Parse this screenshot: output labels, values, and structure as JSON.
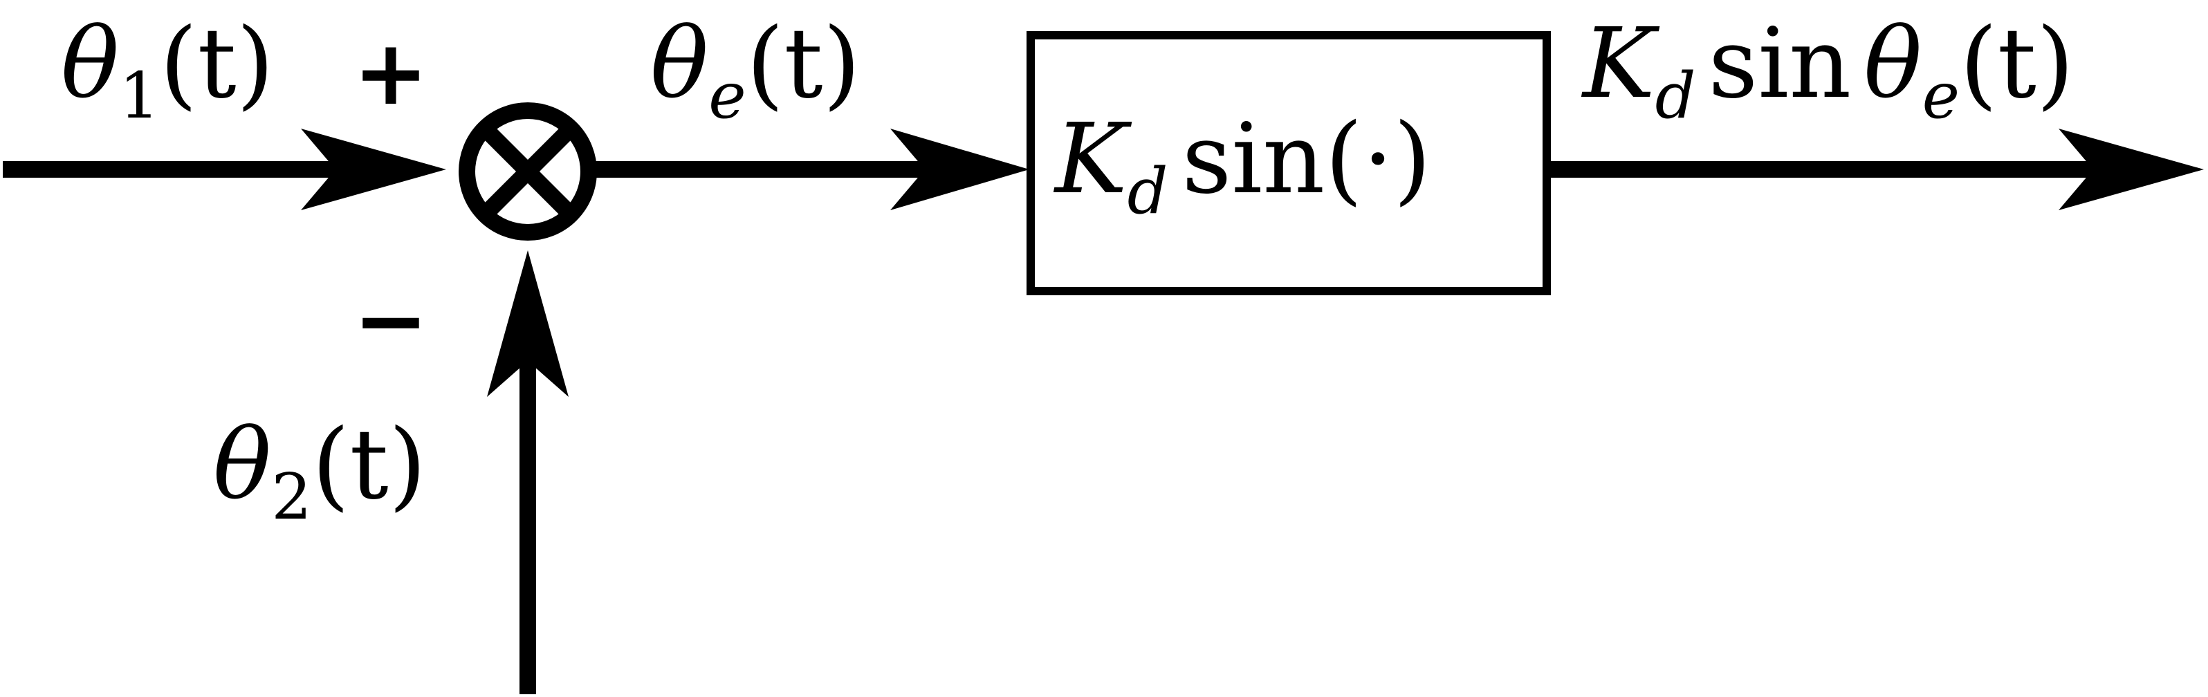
{
  "diagram": {
    "input": {
      "symbol": "θ",
      "subscript": "1",
      "arg": "(t)"
    },
    "feedback": {
      "symbol": "θ",
      "subscript": "2",
      "arg": "(t)"
    },
    "error": {
      "symbol": "θ",
      "subscript": "e",
      "arg": "(t)"
    },
    "plus_sign": "+",
    "minus_sign": "−",
    "summing_junction_symbol": "⊗",
    "block": {
      "coef": "K",
      "coef_sub": "d",
      "func": "sin(·)"
    },
    "output": {
      "coef": "K",
      "coef_sub": "d",
      "func": "sin",
      "symbol": "θ",
      "subscript": "e",
      "arg": "(t)"
    }
  }
}
